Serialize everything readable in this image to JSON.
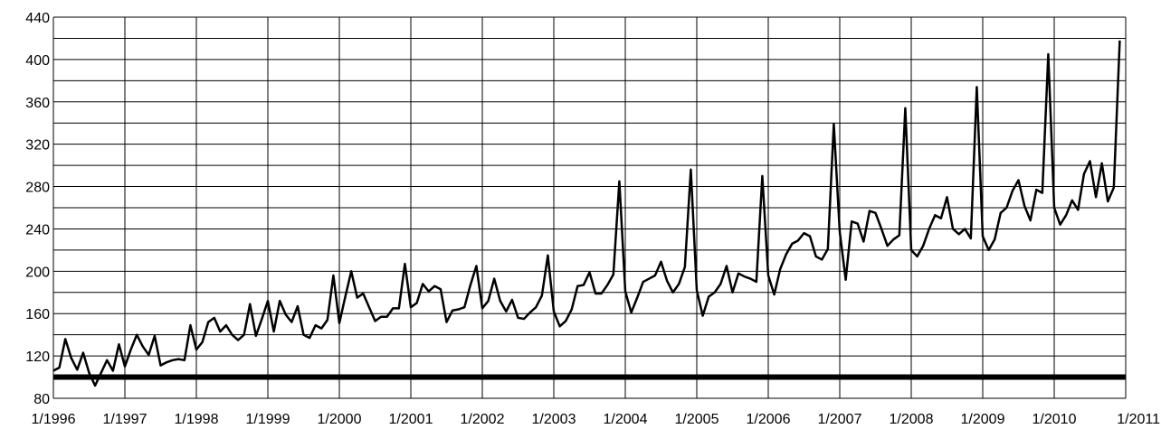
{
  "chart_data": {
    "type": "line",
    "title": "",
    "xlabel": "",
    "ylabel": "",
    "xlim": [
      1996,
      2011
    ],
    "ylim": [
      80,
      440
    ],
    "grid": true,
    "x_tick_labels": [
      "1/1996",
      "1/1997",
      "1/1998",
      "1/1999",
      "1/2000",
      "1/2001",
      "1/2002",
      "1/2003",
      "1/2004",
      "1/2005",
      "1/2006",
      "1/2007",
      "1/2008",
      "1/2009",
      "1/2010",
      "1/2011"
    ],
    "y_ticks": [
      80,
      120,
      160,
      200,
      240,
      280,
      320,
      360,
      400,
      440
    ],
    "y_minor_step": 20,
    "reference_line": {
      "value": 100,
      "color": "#000000"
    },
    "series": [
      {
        "color": "#000000",
        "x_start": "1/1996",
        "step": "month",
        "values": [
          106,
          109,
          136,
          118,
          107,
          123,
          104,
          92,
          104,
          116,
          106,
          131,
          110,
          126,
          140,
          129,
          121,
          139,
          111,
          114,
          116,
          117,
          116,
          149,
          126,
          133,
          152,
          156,
          143,
          149,
          140,
          135,
          140,
          169,
          139,
          155,
          172,
          143,
          172,
          159,
          152,
          167,
          140,
          137,
          149,
          146,
          154,
          196,
          151,
          176,
          200,
          175,
          179,
          166,
          153,
          157,
          157,
          165,
          165,
          207,
          166,
          170,
          188,
          181,
          186,
          183,
          152,
          163,
          164,
          166,
          187,
          205,
          165,
          172,
          193,
          172,
          162,
          173,
          156,
          155,
          161,
          166,
          177,
          215,
          162,
          148,
          153,
          164,
          186,
          187,
          199,
          179,
          179,
          187,
          197,
          285,
          181,
          161,
          175,
          190,
          193,
          196,
          209,
          191,
          180,
          188,
          204,
          296,
          182,
          158,
          176,
          180,
          188,
          205,
          180,
          198,
          195,
          193,
          190,
          290,
          196,
          178,
          202,
          216,
          226,
          229,
          236,
          233,
          214,
          211,
          221,
          339,
          237,
          192,
          247,
          245,
          228,
          257,
          255,
          240,
          224,
          230,
          234,
          354,
          220,
          214,
          224,
          240,
          253,
          250,
          270,
          240,
          235,
          240,
          231,
          374,
          233,
          220,
          230,
          255,
          260,
          276,
          286,
          262,
          248,
          277,
          274,
          405,
          260,
          244,
          253,
          267,
          258,
          292,
          304,
          270,
          302,
          266,
          279,
          418
        ]
      }
    ]
  }
}
